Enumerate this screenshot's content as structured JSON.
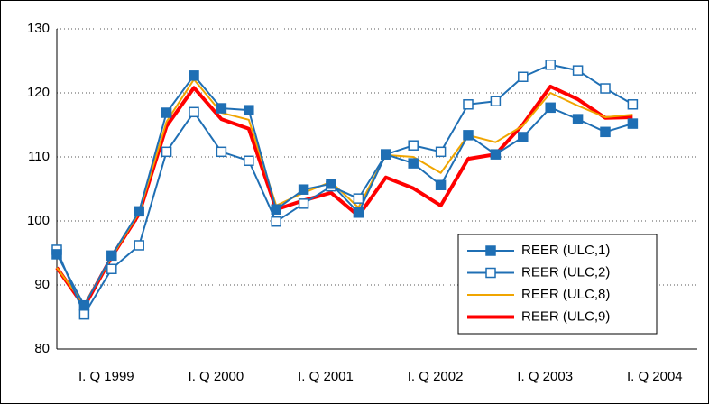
{
  "chart_data": {
    "type": "line",
    "categories": [
      null,
      null,
      "I. Q 1999",
      null,
      null,
      null,
      "I. Q 2000",
      null,
      null,
      null,
      "I. Q 2001",
      null,
      null,
      null,
      "I. Q 2002",
      null,
      null,
      null,
      "I. Q 2003",
      null,
      null,
      null,
      "I. Q 2004"
    ],
    "series": [
      {
        "name": "REER (ULC,1)",
        "color": "#1f6fb4",
        "marker": "square",
        "filled": true,
        "width": 2,
        "values": [
          94.8,
          86.8,
          94.6,
          101.5,
          116.9,
          122.7,
          117.6,
          117.3,
          101.8,
          104.9,
          105.8,
          101.3,
          110.4,
          109.0,
          105.6,
          113.4,
          110.4,
          113.1,
          117.7,
          115.9,
          113.9,
          115.2,
          null
        ]
      },
      {
        "name": "REER (ULC,2)",
        "color": "#1f6fb4",
        "marker": "square",
        "filled": false,
        "width": 2,
        "values": [
          95.5,
          85.4,
          92.5,
          96.2,
          110.8,
          117.0,
          110.8,
          109.4,
          99.9,
          102.7,
          105.4,
          103.5,
          110.4,
          111.8,
          110.8,
          118.2,
          118.7,
          122.5,
          124.4,
          123.5,
          120.7,
          118.2,
          null
        ]
      },
      {
        "name": "REER (ULC,8)",
        "color": "#f0a500",
        "width": 2,
        "values": [
          92.7,
          86.9,
          94.4,
          101.3,
          115.5,
          122.1,
          116.9,
          115.8,
          102.4,
          104.4,
          106.1,
          102.1,
          110.3,
          110.0,
          107.5,
          113.4,
          112.3,
          114.9,
          120.0,
          118.0,
          116.2,
          116.6,
          null
        ]
      },
      {
        "name": "REER (ULC,9)",
        "color": "#ff0000",
        "width": 4,
        "values": [
          92.7,
          86.6,
          94.4,
          101.1,
          114.8,
          120.8,
          115.9,
          114.4,
          101.8,
          103.2,
          104.4,
          100.8,
          106.8,
          105.1,
          102.4,
          109.7,
          110.4,
          115.1,
          121.0,
          119.0,
          116.1,
          116.2,
          null
        ]
      }
    ],
    "ylim": [
      80,
      130
    ],
    "yticks": [
      80,
      90,
      100,
      110,
      120,
      130
    ],
    "grid": true,
    "legend": "lower right"
  }
}
